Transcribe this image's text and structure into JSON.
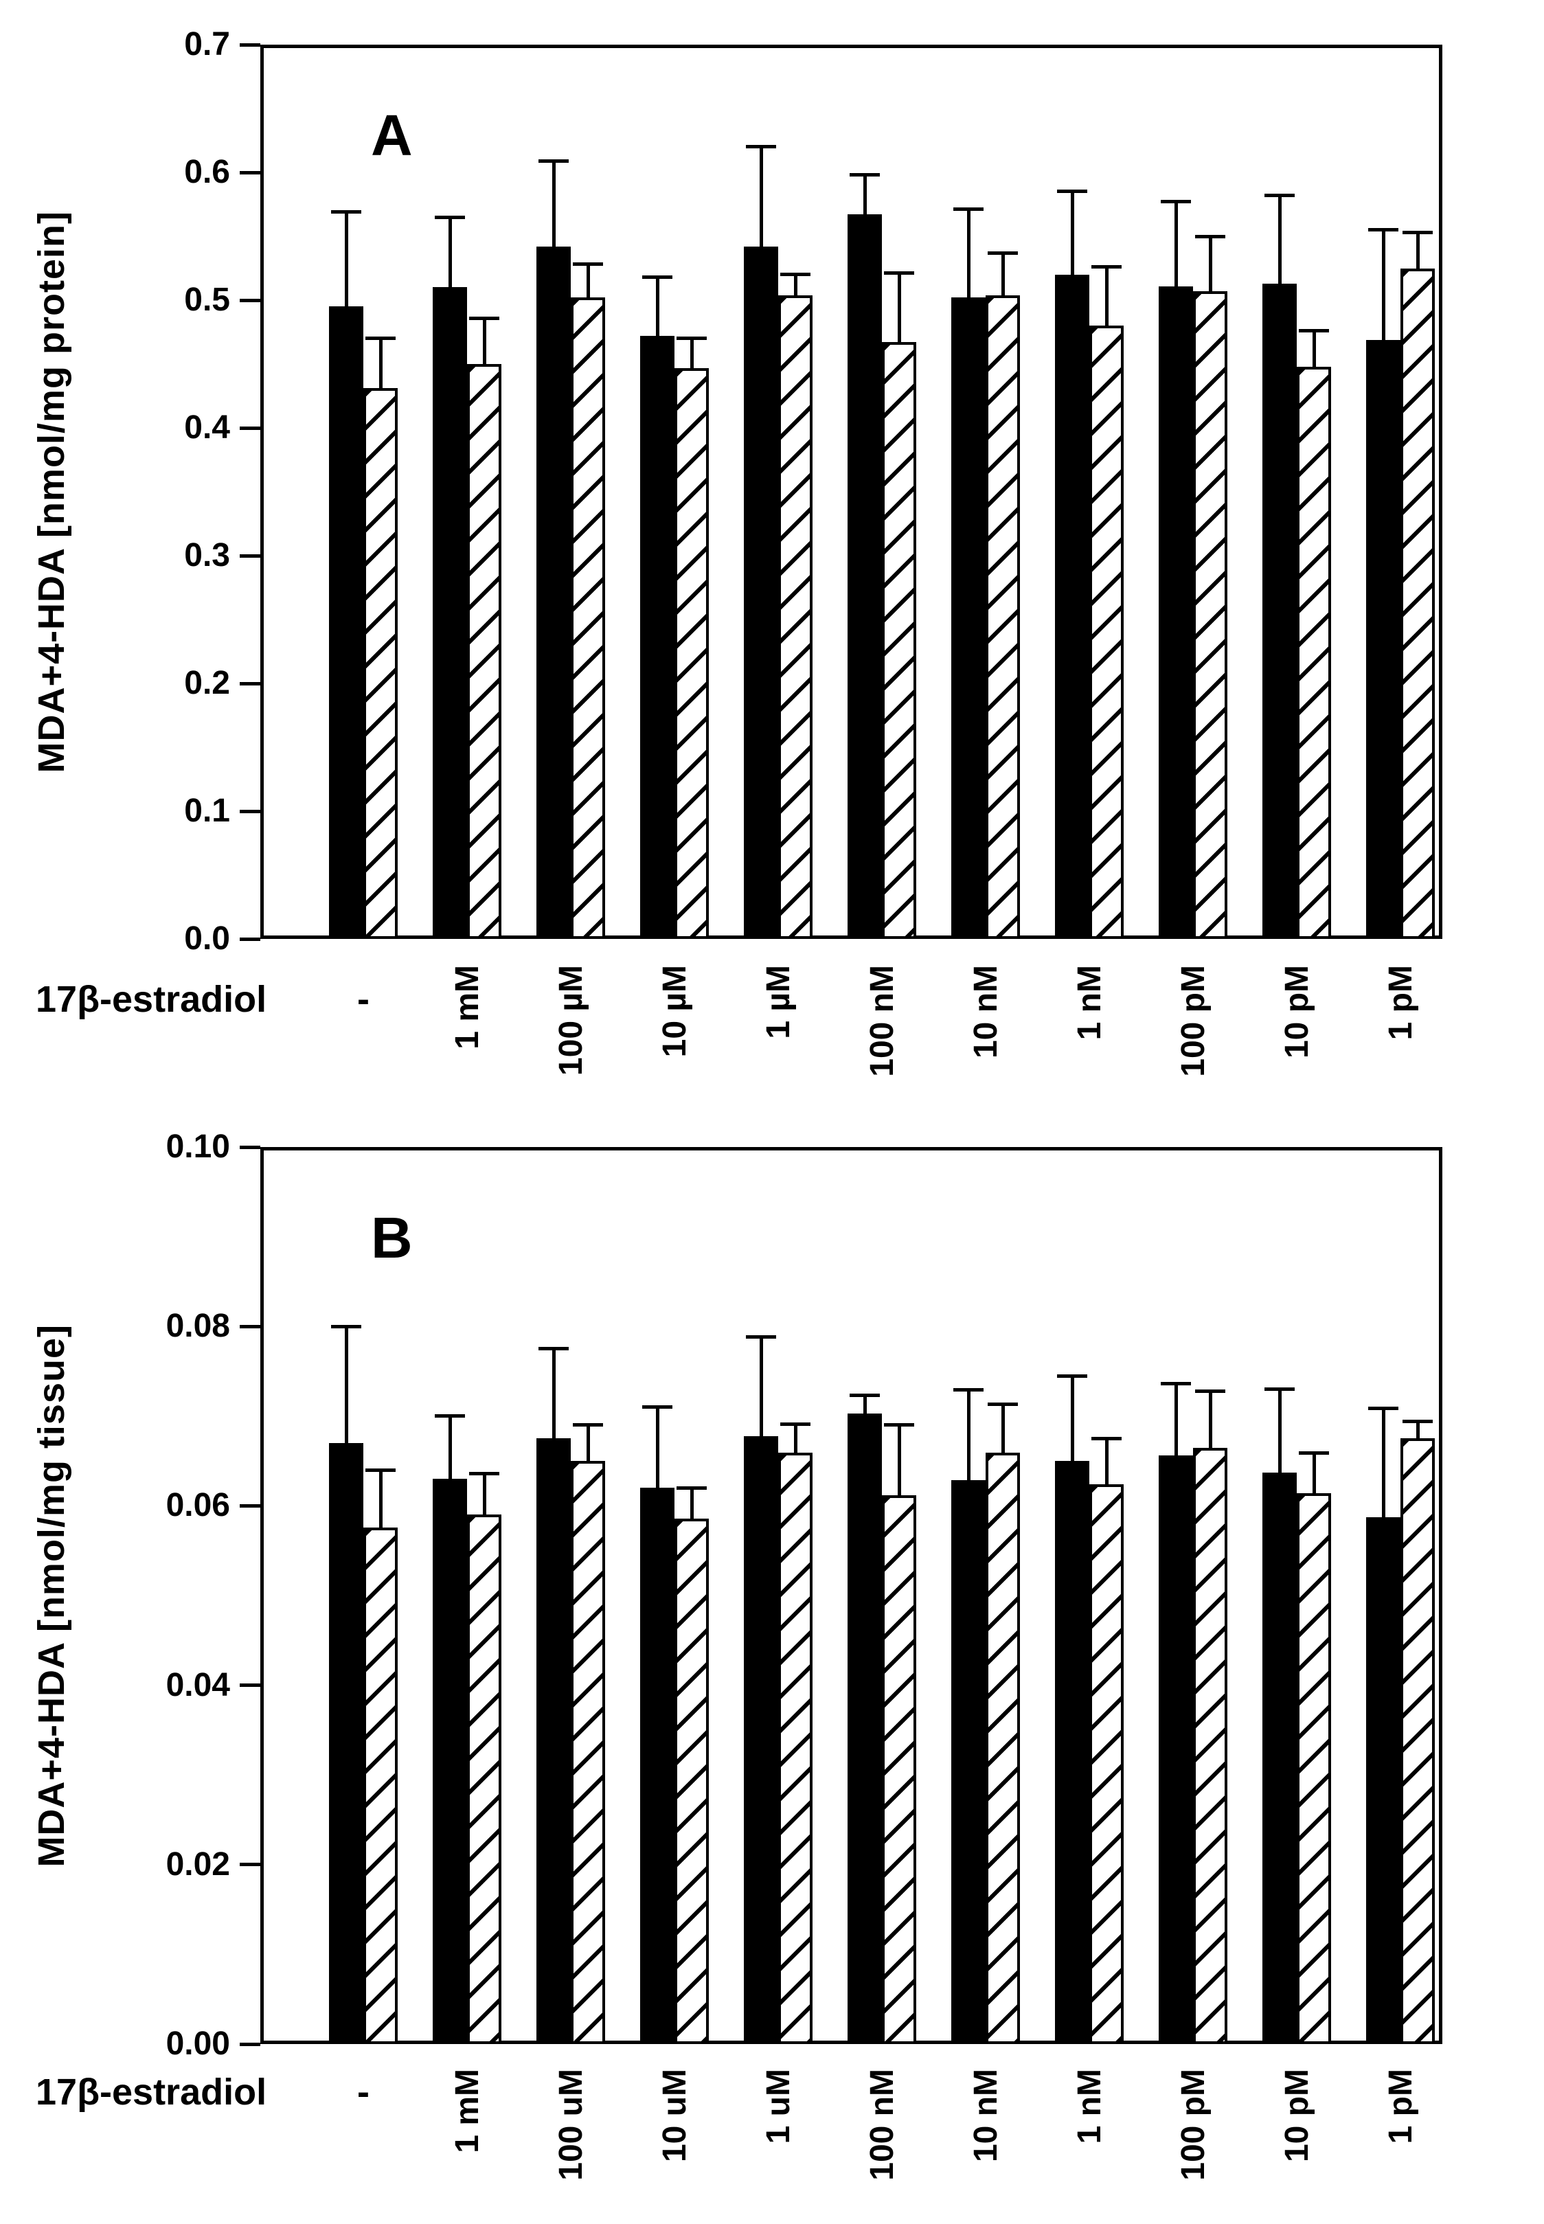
{
  "figure": {
    "x_axis_caption": "17β-estradiol"
  },
  "chart_data": [
    {
      "type": "bar",
      "panel_letter": "A",
      "ylabel": "MDA+4-HDA [nmol/mg protein]",
      "xlabel": "17β-estradiol",
      "ylim": [
        0.0,
        0.7
      ],
      "ytick_step": 0.1,
      "ytick_decimals": 1,
      "yticks": [
        "0.0",
        "0.1",
        "0.2",
        "0.3",
        "0.4",
        "0.5",
        "0.6",
        "0.7"
      ],
      "grid": false,
      "legend_position": "none",
      "categories": [
        "-",
        "1 mM",
        "100 µM",
        "10 µM",
        "1 µM",
        "100 nM",
        "10 nM",
        "1 nM",
        "100 pM",
        "10 pM",
        "1 pM"
      ],
      "series": [
        {
          "name": "solid-black-bars",
          "style": "solid",
          "values": [
            0.495,
            0.51,
            0.542,
            0.472,
            0.542,
            0.567,
            0.502,
            0.52,
            0.511,
            0.513,
            0.469
          ],
          "errors_up": [
            0.074,
            0.055,
            0.067,
            0.046,
            0.078,
            0.031,
            0.069,
            0.065,
            0.066,
            0.069,
            0.086
          ]
        },
        {
          "name": "diagonal-hatched-bars",
          "style": "hatched",
          "values": [
            0.431,
            0.45,
            0.502,
            0.447,
            0.504,
            0.467,
            0.504,
            0.48,
            0.507,
            0.448,
            0.525
          ],
          "errors_up": [
            0.039,
            0.036,
            0.026,
            0.023,
            0.016,
            0.054,
            0.033,
            0.046,
            0.043,
            0.028,
            0.028
          ]
        }
      ]
    },
    {
      "type": "bar",
      "panel_letter": "B",
      "ylabel": "MDA+4-HDA [nmol/mg tissue]",
      "xlabel": "17β-estradiol",
      "ylim": [
        0.0,
        0.1
      ],
      "ytick_step": 0.02,
      "ytick_decimals": 2,
      "yticks": [
        "0.00",
        "0.02",
        "0.04",
        "0.06",
        "0.08",
        "0.10"
      ],
      "grid": false,
      "legend_position": "none",
      "categories": [
        "-",
        "1 mM",
        "100 uM",
        "10 uM",
        "1 uM",
        "100 nM",
        "10 nM",
        "1 nM",
        "100 pM",
        "10 pM",
        "1 pM"
      ],
      "series": [
        {
          "name": "solid-black-bars",
          "style": "solid",
          "values": [
            0.067,
            0.063,
            0.0675,
            0.062,
            0.0678,
            0.0703,
            0.0629,
            0.065,
            0.0656,
            0.0637,
            0.0587
          ],
          "errors_up": [
            0.013,
            0.007,
            0.01,
            0.009,
            0.011,
            0.002,
            0.01,
            0.0095,
            0.008,
            0.0093,
            0.0122
          ]
        },
        {
          "name": "diagonal-hatched-bars",
          "style": "hatched",
          "values": [
            0.0576,
            0.059,
            0.065,
            0.0586,
            0.0659,
            0.0612,
            0.0659,
            0.0624,
            0.0665,
            0.0614,
            0.0675
          ],
          "errors_up": [
            0.0064,
            0.0046,
            0.004,
            0.0034,
            0.0032,
            0.0078,
            0.0054,
            0.0051,
            0.0063,
            0.0045,
            0.0019
          ]
        }
      ]
    }
  ]
}
